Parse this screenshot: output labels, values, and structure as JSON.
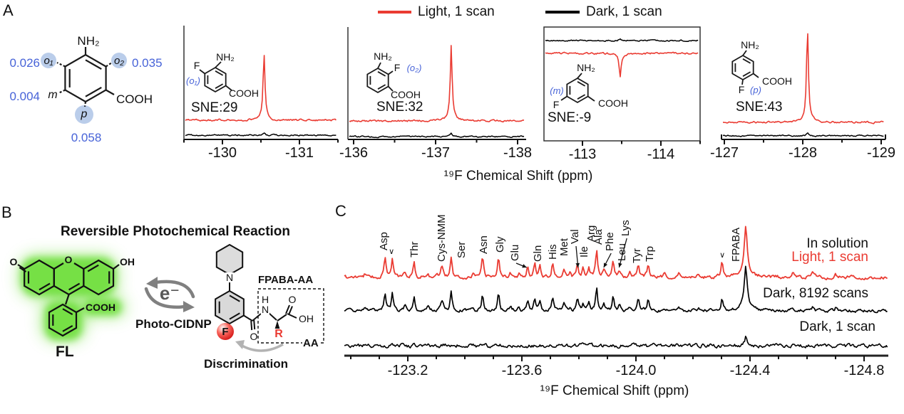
{
  "colors": {
    "light_trace": "#ea3b32",
    "dark_trace": "#000000",
    "site_blue": "#4763d8",
    "site_circle_fill": "#bacdea",
    "glow_green": "#6fdf3e",
    "ring_fill_gray": "#d9d9d9",
    "arrow_gray": "#808080"
  },
  "panelA": {
    "label": "A",
    "legend_light": "Light, 1 scan",
    "legend_dark": "Dark, 1 scan",
    "xlabel": "¹⁹F Chemical Shift (ppm)",
    "mol": {
      "nh2": "NH₂",
      "cooh": "COOH",
      "o1": "o₁",
      "o2": "o₂",
      "m": "m",
      "p": "p",
      "val_o1": "0.026",
      "val_o2": "0.035",
      "val_m": "0.004",
      "val_p": "0.058"
    }
  },
  "spectra": [
    {
      "sne": "SNE:29",
      "site": "(o₁)",
      "nh2": "NH₂",
      "f": "F",
      "cooh": "COOH"
    },
    {
      "sne": "SNE:32",
      "site": "(o₂)",
      "nh2": "NH₂",
      "f": "F",
      "cooh": "COOH"
    },
    {
      "sne": "SNE:-9",
      "site": "(m)",
      "nh2": "NH₂",
      "f": "F",
      "cooh": "COOH"
    },
    {
      "sne": "SNE:43",
      "site": "(p)",
      "nh2": "NH₂",
      "f": "F",
      "cooh": "COOH"
    }
  ],
  "panelB": {
    "label": "B",
    "title": "Reversible Photochemical Reaction",
    "fl": "FL",
    "electron": "e⁻",
    "photo_cidnp": "Photo-CIDNP",
    "fpaba_aa": "FPABA-AA",
    "aa": "AA",
    "r": "R",
    "discrimination": "Discrimination",
    "fl_o_left": "O",
    "fl_o_top": "O",
    "fl_oh": "OH",
    "fl_cooh": "COOH",
    "pip_n": "N",
    "f_atom": "F",
    "amide_h": "H",
    "amide_n": "N",
    "amide_o": "O",
    "acid_o": "O",
    "acid_oh": "OH"
  },
  "panelC": {
    "label": "C",
    "xlabel": "¹⁹F Chemical Shift (ppm)",
    "ann_solution": "In solution",
    "ann_light": "Light, 1 scan",
    "ann_dark8192": "Dark, 8192 scans",
    "ann_dark1": "Dark, 1 scan"
  },
  "chart_data": {
    "panel_a_spectra": [
      {
        "type": "line",
        "label": "SNE:29",
        "site": "o1",
        "xlim": [
          -129.5,
          -131.5
        ],
        "xticks": [
          -130,
          -131
        ],
        "tick_step": 0.5,
        "peak_ppm": -130.54,
        "series": [
          {
            "name": "Light, 1 scan",
            "color": "#ea3b32",
            "peak_rel_height": 89
          },
          {
            "name": "Dark, 1 scan",
            "color": "#000000",
            "peak_rel_height": 4
          }
        ]
      },
      {
        "type": "line",
        "label": "SNE:32",
        "site": "o2",
        "xlim": [
          -135.93,
          -138.1
        ],
        "xticks": [
          -136,
          -137,
          -138
        ],
        "tick_step": 0.5,
        "peak_ppm": -137.19,
        "series": [
          {
            "name": "Light, 1 scan",
            "color": "#ea3b32",
            "peak_rel_height": 100
          },
          {
            "name": "Dark, 1 scan",
            "color": "#000000",
            "peak_rel_height": 4
          }
        ]
      },
      {
        "type": "line",
        "label": "SNE:-9",
        "site": "m",
        "xlim": [
          -112.51,
          -114.5
        ],
        "xticks": [
          -113,
          -114
        ],
        "tick_step": 0.5,
        "peak_ppm": -113.48,
        "series": [
          {
            "name": "Light, 1 scan",
            "color": "#ea3b32",
            "peak_rel_height": -32
          },
          {
            "name": "Dark, 1 scan",
            "color": "#000000",
            "peak_rel_height": 3
          }
        ]
      },
      {
        "type": "line",
        "label": "SNE:43",
        "site": "p",
        "xlim": [
          -126.96,
          -129.05
        ],
        "xticks": [
          -127,
          -128,
          -129
        ],
        "tick_step": 0.5,
        "peak_ppm": -128.06,
        "series": [
          {
            "name": "Light, 1 scan",
            "color": "#ea3b32",
            "peak_rel_height": 124
          },
          {
            "name": "Dark, 1 scan",
            "color": "#000000",
            "peak_rel_height": 4
          }
        ]
      }
    ],
    "panel_c": {
      "type": "line",
      "xlabel": "¹⁹F Chemical Shift (ppm)",
      "xlim": [
        -122.98,
        -124.89
      ],
      "xticks": [
        -123.2,
        -123.6,
        -124.0,
        -124.4,
        -124.8
      ],
      "minor_tick_step": 0.1,
      "series": [
        {
          "name": "Light, 1 scan (in solution)",
          "color": "#ea3b32"
        },
        {
          "name": "Dark, 8192 scans",
          "color": "#000000",
          "rel_scale": 0.85
        },
        {
          "name": "Dark, 1 scan",
          "color": "#000000"
        }
      ],
      "peaks": [
        {
          "ppm": -123.12,
          "h": 26
        },
        {
          "ppm": -123.146,
          "h": 28
        },
        {
          "ppm": -123.222,
          "h": 25
        },
        {
          "ppm": -123.32,
          "h": 15,
          "w": 2.5
        },
        {
          "ppm": -123.352,
          "h": 30
        },
        {
          "ppm": -123.462,
          "h": 26
        },
        {
          "ppm": -123.518,
          "h": 30
        },
        {
          "ppm": -123.62,
          "h": 16
        },
        {
          "ppm": -123.645,
          "h": 20
        },
        {
          "ppm": -123.663,
          "h": 15
        },
        {
          "ppm": -123.708,
          "h": 22
        },
        {
          "ppm": -123.748,
          "h": 12
        },
        {
          "ppm": -123.795,
          "h": 18
        },
        {
          "ppm": -123.815,
          "h": 14
        },
        {
          "ppm": -123.835,
          "h": 16
        },
        {
          "ppm": -123.862,
          "h": 38
        },
        {
          "ppm": -123.888,
          "h": 12
        },
        {
          "ppm": -123.92,
          "h": 22
        },
        {
          "ppm": -123.942,
          "h": 10
        },
        {
          "ppm": -124.008,
          "h": 18
        },
        {
          "ppm": -124.043,
          "h": 20
        },
        {
          "ppm": -124.302,
          "h": 20
        },
        {
          "ppm": -124.385,
          "h": 62,
          "w": 2.4,
          "base_h": 11,
          "base_w": 8
        }
      ],
      "minor_peaks": [
        {
          "ppm": -123.05,
          "h": 6
        },
        {
          "ppm": -123.19,
          "h": 8
        },
        {
          "ppm": -123.27,
          "h": 7
        },
        {
          "ppm": -123.43,
          "h": 6
        },
        {
          "ppm": -123.56,
          "h": 7
        },
        {
          "ppm": -123.59,
          "h": 6
        },
        {
          "ppm": -123.77,
          "h": 8
        },
        {
          "ppm": -123.98,
          "h": 6
        },
        {
          "ppm": -124.1,
          "h": 5
        },
        {
          "ppm": -124.15,
          "h": 6
        },
        {
          "ppm": -124.22,
          "h": 5
        },
        {
          "ppm": -124.55,
          "h": 6
        },
        {
          "ppm": -124.62,
          "h": 7
        },
        {
          "ppm": -124.7,
          "h": 5
        }
      ],
      "labels": [
        {
          "text": "Asp",
          "ppm": -123.115,
          "y": 352
        },
        {
          "text": "Thr",
          "ppm": -123.222,
          "y": 362
        },
        {
          "text": "Cys-NMM",
          "ppm": -123.318,
          "y": 368
        },
        {
          "text": "Ser",
          "ppm": -123.388,
          "y": 363
        },
        {
          "text": "Asn",
          "ppm": -123.465,
          "y": 357
        },
        {
          "text": "Gly",
          "ppm": -123.523,
          "y": 355
        },
        {
          "text": "Glu",
          "ppm": -123.575,
          "y": 367,
          "arrow_to_ppm": -123.617
        },
        {
          "text": "Gln",
          "ppm": -123.655,
          "y": 368
        },
        {
          "text": "His",
          "ppm": -123.708,
          "y": 365
        },
        {
          "text": "Met",
          "ppm": -123.748,
          "y": 360
        },
        {
          "text": "Val",
          "ppm": -123.785,
          "y": 343,
          "arrow_to_ppm": -123.797
        },
        {
          "text": "Ile",
          "ppm": -123.818,
          "y": 362
        },
        {
          "text": "Arg",
          "ppm": -123.843,
          "y": 340
        },
        {
          "text": "Ala",
          "ppm": -123.868,
          "y": 344
        },
        {
          "text": "Phe",
          "ppm": -123.908,
          "y": 353,
          "arrow_to_ppm": -123.887
        },
        {
          "text": "Lys",
          "ppm": -123.963,
          "y": 332,
          "arrow_to_ppm": -123.941
        },
        {
          "text": "Leu",
          "ppm": -123.95,
          "y": 367
        },
        {
          "text": "Tyr",
          "ppm": -124.003,
          "y": 370
        },
        {
          "text": "Trp",
          "ppm": -124.048,
          "y": 368
        },
        {
          "text": "FPABA",
          "ppm": -124.35,
          "y": 368
        }
      ],
      "markers": [
        {
          "symbol": "∨",
          "ppm": -123.143,
          "y": 357
        },
        {
          "symbol": "∨",
          "ppm": -124.303,
          "y": 362
        }
      ]
    }
  }
}
